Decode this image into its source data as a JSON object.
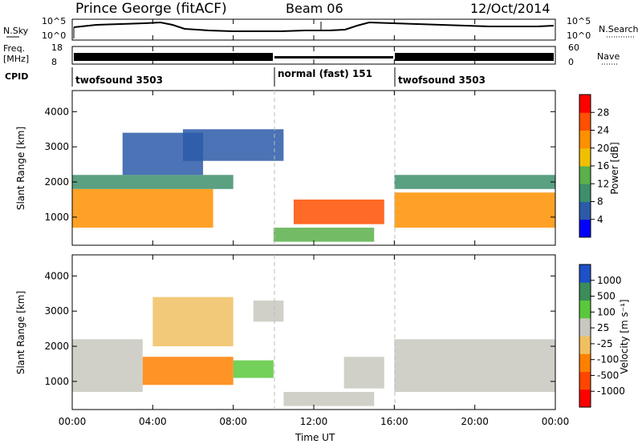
{
  "header": {
    "station": "Prince George (fitACF)",
    "beam": "Beam 06",
    "date": "12/Oct/2014"
  },
  "noise_panel": {
    "left_label": "N.Sky",
    "right_label": "N.Search",
    "left_ticks": [
      "10^5",
      "10^0"
    ],
    "right_ticks": [
      "10^5",
      "10^0"
    ]
  },
  "freq_panel": {
    "left_label": "Freq.",
    "left_unit": "[MHz]",
    "right_label": "Nave",
    "left_ticks": [
      "18",
      "8"
    ],
    "right_ticks": [
      "60",
      "0"
    ]
  },
  "cpid": {
    "label": "CPID",
    "segments": [
      {
        "name": "twofsound 3503",
        "start_h": 0,
        "end_h": 10
      },
      {
        "name": "normal (fast) 151",
        "start_h": 10,
        "end_h": 16
      },
      {
        "name": "twofsound 3503",
        "start_h": 16,
        "end_h": 24
      }
    ]
  },
  "x_axis": {
    "label": "Time UT",
    "ticks": [
      "00:00",
      "04:00",
      "08:00",
      "12:00",
      "16:00",
      "20:00",
      "00:00"
    ]
  },
  "power_colorbar": {
    "label": "Power [dB]",
    "ticks": [
      "28",
      "24",
      "20",
      "16",
      "12",
      "8",
      "4"
    ]
  },
  "velocity_colorbar": {
    "label": "Velocity [m s⁻¹]",
    "ticks": [
      "1000",
      "500",
      "100",
      "25",
      "-25",
      "-100",
      "-500",
      "-1000"
    ]
  },
  "chart_data": [
    {
      "type": "heatmap",
      "title": "",
      "xlabel": "Time UT",
      "ylabel": "Slant Range [km]",
      "xlim": [
        0,
        24
      ],
      "ylim": [
        200,
        4600
      ],
      "y_ticks": [
        1000,
        2000,
        3000,
        4000
      ],
      "colorbar": "Power [dB]",
      "colorbar_range": [
        0,
        30
      ],
      "colors": [
        "#0000ff",
        "#2b5aa8",
        "#3d8f6b",
        "#5ab04a",
        "#f0c000",
        "#ff9000",
        "#ff5000",
        "#ff0000"
      ],
      "regions": [
        {
          "t0": 0.0,
          "t1": 7.0,
          "r0": 700,
          "r1": 1800,
          "level": 22
        },
        {
          "t0": 0.0,
          "t1": 8.0,
          "r0": 1800,
          "r1": 2200,
          "level": 9
        },
        {
          "t0": 2.5,
          "t1": 6.5,
          "r0": 2200,
          "r1": 3400,
          "level": 6
        },
        {
          "t0": 5.5,
          "t1": 10.5,
          "r0": 2600,
          "r1": 3500,
          "level": 5
        },
        {
          "t0": 10.0,
          "t1": 15.0,
          "r0": 300,
          "r1": 700,
          "level": 14
        },
        {
          "t0": 11.0,
          "t1": 15.5,
          "r0": 800,
          "r1": 1500,
          "level": 24
        },
        {
          "t0": 16.0,
          "t1": 24.0,
          "r0": 700,
          "r1": 1700,
          "level": 22
        },
        {
          "t0": 16.0,
          "t1": 24.0,
          "r0": 1800,
          "r1": 2200,
          "level": 8
        }
      ]
    },
    {
      "type": "heatmap",
      "title": "",
      "xlabel": "Time UT",
      "ylabel": "Slant Range [km]",
      "xlim": [
        0,
        24
      ],
      "ylim": [
        200,
        4600
      ],
      "y_ticks": [
        1000,
        2000,
        3000,
        4000
      ],
      "colorbar": "Velocity [m s⁻¹]",
      "colorbar_range": [
        -1000,
        1000
      ],
      "colors": [
        "#ff0000",
        "#ff4500",
        "#ff8000",
        "#f0c060",
        "#c8c8c0",
        "#5ac83c",
        "#3c8c5a",
        "#1e50c8"
      ],
      "regions": [
        {
          "t0": 0.0,
          "t1": 3.5,
          "r0": 700,
          "r1": 2200,
          "velocity": 0
        },
        {
          "t0": 3.5,
          "t1": 8.0,
          "r0": 900,
          "r1": 1700,
          "velocity": -400
        },
        {
          "t0": 4.0,
          "t1": 8.0,
          "r0": 2000,
          "r1": 3400,
          "velocity": -200
        },
        {
          "t0": 8.0,
          "t1": 10.0,
          "r0": 1100,
          "r1": 1600,
          "velocity": 300
        },
        {
          "t0": 9.0,
          "t1": 10.5,
          "r0": 2700,
          "r1": 3300,
          "velocity": 0
        },
        {
          "t0": 10.5,
          "t1": 15.0,
          "r0": 300,
          "r1": 700,
          "velocity": 100
        },
        {
          "t0": 13.5,
          "t1": 15.5,
          "r0": 800,
          "r1": 1700,
          "velocity": 150
        },
        {
          "t0": 16.0,
          "t1": 24.0,
          "r0": 700,
          "r1": 2200,
          "velocity": 0
        }
      ]
    }
  ]
}
